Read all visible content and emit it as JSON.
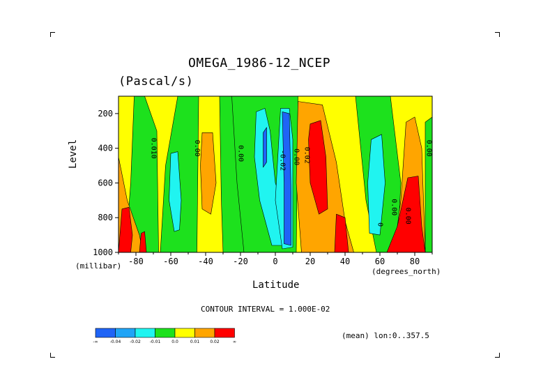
{
  "chart_data": {
    "type": "heatmap",
    "title": "OMEGA_1986-12_NCEP",
    "subtitle": "(Pascal/s)",
    "xlabel": "Latitude",
    "ylabel": "Level",
    "x_units": "(degrees_north)",
    "y_units": "(millibar)",
    "xlim": [
      -90,
      90
    ],
    "ylim": [
      1000,
      100
    ],
    "x_ticks": [
      -80,
      -60,
      -40,
      -20,
      0,
      20,
      40,
      60,
      80
    ],
    "x_tick_labels": [
      "-80",
      "-60",
      "-40",
      "-20",
      "0",
      "20",
      "40",
      "60",
      "80"
    ],
    "y_ticks": [
      200,
      400,
      600,
      800,
      1000
    ],
    "y_tick_labels": [
      "200",
      "400",
      "600",
      "800",
      "1000"
    ],
    "contour_interval_label": "CONTOUR INTERVAL = 1.000E-02",
    "region_label": "(mean) lon:0..357.5",
    "colorbar": {
      "colors": [
        "#1f64f6",
        "#20a4f6",
        "#20f4f0",
        "#1de11d",
        "#ffff00",
        "#ffa500",
        "#ff0000"
      ],
      "labels": [
        "-∞",
        "-0.04",
        "-0.02",
        "-0.01",
        "0.0",
        "0.01",
        "0.02",
        "∞"
      ]
    },
    "contour_labels": [
      {
        "text": "0.010",
        "lat": -71,
        "level": 400
      },
      {
        "text": "0.00",
        "lat": -46,
        "level": 400
      },
      {
        "text": "0.00",
        "lat": -21,
        "level": 430
      },
      {
        "text": "-0.02",
        "lat": 3,
        "level": 470
      },
      {
        "text": "0.00",
        "lat": 11,
        "level": 450
      },
      {
        "text": "0.02",
        "lat": 17,
        "level": 440
      },
      {
        "text": "0.00",
        "lat": 67,
        "level": 740
      },
      {
        "text": "0.00",
        "lat": 75,
        "level": 790
      },
      {
        "text": "0.00",
        "lat": 87,
        "level": 400
      },
      {
        "text": "0",
        "lat": 59,
        "level": 840
      }
    ],
    "fields": [
      {
        "band": "green",
        "value": -0.005,
        "region": [
          [
            -81,
            100
          ],
          [
            -75,
            100
          ],
          [
            -68,
            300
          ],
          [
            -67,
            1000
          ],
          [
            -86,
            1000
          ],
          [
            -83,
            600
          ]
        ]
      },
      {
        "band": "green",
        "value": -0.005,
        "region": [
          [
            -56,
            100
          ],
          [
            -44,
            100
          ],
          [
            -45,
            1000
          ],
          [
            -66,
            1000
          ],
          [
            -63,
            500
          ]
        ]
      },
      {
        "band": "green",
        "value": -0.005,
        "region": [
          [
            -32,
            100
          ],
          [
            -18,
            100
          ],
          [
            -15,
            400
          ],
          [
            -14,
            1000
          ],
          [
            -30,
            1000
          ],
          [
            -31,
            700
          ]
        ]
      },
      {
        "band": "green",
        "value": -0.005,
        "region": [
          [
            -25,
            100
          ],
          [
            13,
            100
          ],
          [
            12,
            1000
          ],
          [
            -18,
            1000
          ],
          [
            -22,
            600
          ]
        ]
      },
      {
        "band": "green",
        "value": -0.005,
        "region": [
          [
            46,
            100
          ],
          [
            66,
            100
          ],
          [
            72,
            600
          ],
          [
            70,
            1000
          ],
          [
            58,
            1000
          ],
          [
            52,
            700
          ]
        ]
      },
      {
        "band": "green",
        "value": -0.005,
        "region": [
          [
            86,
            250
          ],
          [
            90,
            220
          ],
          [
            90,
            1000
          ],
          [
            86,
            1000
          ]
        ]
      },
      {
        "band": "cyan",
        "value": -0.015,
        "region": [
          [
            -60,
            430
          ],
          [
            -56,
            420
          ],
          [
            -54,
            700
          ],
          [
            -55,
            870
          ],
          [
            -58,
            880
          ],
          [
            -61,
            700
          ]
        ]
      },
      {
        "band": "cyan",
        "value": -0.015,
        "region": [
          [
            -11,
            190
          ],
          [
            -6,
            170
          ],
          [
            -3,
            300
          ],
          [
            0,
            600
          ],
          [
            5,
            750
          ],
          [
            6,
            960
          ],
          [
            -2,
            960
          ],
          [
            -9,
            700
          ],
          [
            -12,
            450
          ]
        ]
      },
      {
        "band": "cyan",
        "value": -0.015,
        "region": [
          [
            3,
            170
          ],
          [
            8,
            170
          ],
          [
            10,
            350
          ],
          [
            10,
            970
          ],
          [
            4,
            980
          ],
          [
            0,
            700
          ]
        ]
      },
      {
        "band": "cyan",
        "value": -0.015,
        "region": [
          [
            55,
            350
          ],
          [
            61,
            320
          ],
          [
            63,
            600
          ],
          [
            60,
            900
          ],
          [
            54,
            890
          ],
          [
            53,
            600
          ]
        ]
      },
      {
        "band": "blue",
        "value": -0.025,
        "region": [
          [
            4,
            190
          ],
          [
            8,
            200
          ],
          [
            9,
            650
          ],
          [
            9,
            960
          ],
          [
            5,
            950
          ],
          [
            5,
            600
          ]
        ]
      },
      {
        "band": "blue",
        "value": -0.025,
        "region": [
          [
            -7,
            310
          ],
          [
            -5,
            280
          ],
          [
            -5,
            480
          ],
          [
            -7,
            510
          ]
        ]
      },
      {
        "band": "orange",
        "value": 0.015,
        "region": [
          [
            -42,
            310
          ],
          [
            -36,
            310
          ],
          [
            -34,
            600
          ],
          [
            -37,
            780
          ],
          [
            -42,
            750
          ],
          [
            -43,
            500
          ]
        ]
      },
      {
        "band": "orange",
        "value": 0.015,
        "region": [
          [
            13,
            130
          ],
          [
            27,
            150
          ],
          [
            35,
            480
          ],
          [
            40,
            820
          ],
          [
            45,
            1000
          ],
          [
            15,
            1000
          ],
          [
            12,
            600
          ]
        ]
      },
      {
        "band": "orange",
        "value": 0.015,
        "region": [
          [
            -90,
            450
          ],
          [
            -85,
            700
          ],
          [
            -78,
            900
          ],
          [
            -76,
            1000
          ],
          [
            -90,
            1000
          ]
        ]
      },
      {
        "band": "orange",
        "value": 0.015,
        "region": [
          [
            75,
            250
          ],
          [
            80,
            220
          ],
          [
            84,
            400
          ],
          [
            86,
            1000
          ],
          [
            68,
            1000
          ],
          [
            72,
            700
          ]
        ]
      },
      {
        "band": "red",
        "value": 0.025,
        "region": [
          [
            20,
            260
          ],
          [
            26,
            240
          ],
          [
            29,
            450
          ],
          [
            30,
            750
          ],
          [
            25,
            780
          ],
          [
            20,
            600
          ],
          [
            19,
            350
          ]
        ]
      },
      {
        "band": "red",
        "value": 0.025,
        "region": [
          [
            -88,
            750
          ],
          [
            -84,
            740
          ],
          [
            -82,
            900
          ],
          [
            -83,
            1000
          ],
          [
            -90,
            1000
          ]
        ]
      },
      {
        "band": "red",
        "value": 0.025,
        "region": [
          [
            -77,
            890
          ],
          [
            -75,
            880
          ],
          [
            -74,
            1000
          ],
          [
            -78,
            1000
          ]
        ]
      },
      {
        "band": "red",
        "value": 0.025,
        "region": [
          [
            35,
            780
          ],
          [
            40,
            800
          ],
          [
            42,
            1000
          ],
          [
            34,
            1000
          ]
        ]
      },
      {
        "band": "red",
        "value": 0.025,
        "region": [
          [
            76,
            570
          ],
          [
            82,
            560
          ],
          [
            84,
            850
          ],
          [
            86,
            1000
          ],
          [
            64,
            1000
          ],
          [
            70,
            850
          ]
        ]
      }
    ]
  }
}
